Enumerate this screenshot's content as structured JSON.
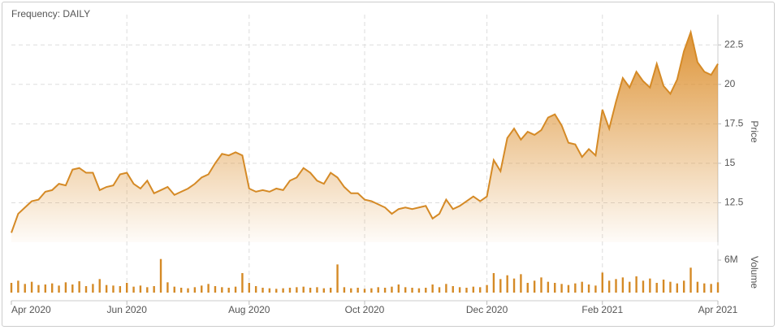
{
  "chart_data": {
    "type": "area",
    "title": "Frequency: DAILY",
    "ylabel": "Price",
    "y2label": "Volume",
    "categories": [
      "Apr 2020",
      null,
      null,
      null,
      null,
      null,
      null,
      null,
      null,
      null,
      null,
      null,
      null,
      null,
      null,
      null,
      null,
      "Jun 2020",
      null,
      null,
      null,
      null,
      null,
      null,
      null,
      null,
      null,
      null,
      null,
      null,
      null,
      null,
      null,
      null,
      null,
      "Aug 2020",
      null,
      null,
      null,
      null,
      null,
      null,
      null,
      null,
      null,
      null,
      null,
      null,
      null,
      null,
      null,
      null,
      "Oct 2020",
      null,
      null,
      null,
      null,
      null,
      null,
      null,
      null,
      null,
      null,
      null,
      null,
      null,
      null,
      null,
      null,
      null,
      "Dec 2020",
      null,
      null,
      null,
      null,
      null,
      null,
      null,
      null,
      null,
      null,
      null,
      null,
      null,
      null,
      null,
      null,
      "Feb 2021",
      null,
      null,
      null,
      null,
      null,
      null,
      null,
      null,
      null,
      null,
      null,
      null,
      null,
      null,
      null,
      null,
      "Apr 2021"
    ],
    "series": [
      {
        "type": "area",
        "color": "#d58a26",
        "values": [
          10.6,
          11.8,
          12.2,
          12.6,
          12.7,
          13.2,
          13.3,
          13.7,
          13.6,
          14.6,
          14.7,
          14.4,
          14.4,
          13.3,
          13.5,
          13.6,
          14.3,
          14.4,
          13.7,
          13.4,
          13.9,
          13.1,
          13.3,
          13.5,
          13.0,
          13.2,
          13.4,
          13.7,
          14.1,
          14.3,
          15.0,
          15.6,
          15.5,
          15.7,
          15.5,
          13.4,
          13.2,
          13.3,
          13.2,
          13.4,
          13.3,
          13.9,
          14.1,
          14.7,
          14.4,
          13.9,
          13.7,
          14.4,
          14.1,
          13.5,
          13.1,
          13.1,
          12.7,
          12.6,
          12.4,
          12.2,
          11.8,
          12.1,
          12.2,
          12.1,
          12.2,
          12.3,
          11.5,
          11.8,
          12.7,
          12.1,
          12.3,
          12.6,
          12.9,
          12.6,
          12.9,
          15.2,
          14.5,
          16.6,
          17.2,
          16.5,
          17.0,
          16.8,
          17.1,
          17.9,
          18.1,
          17.4,
          16.3,
          16.2,
          15.4,
          15.9,
          15.5,
          18.4,
          17.2,
          18.9,
          20.4,
          19.8,
          20.8,
          20.2,
          19.8,
          21.3,
          19.9,
          19.4,
          20.3,
          22.1,
          23.3,
          21.4,
          20.8,
          20.6,
          21.3
        ]
      },
      {
        "type": "bar",
        "axis": "y2",
        "color": "#d58a26",
        "values": [
          1800000,
          2200000,
          1600000,
          2000000,
          1400000,
          1500000,
          1700000,
          1300000,
          1900000,
          1500000,
          2100000,
          1200000,
          1600000,
          2500000,
          1400000,
          1300000,
          1200000,
          1800000,
          1100000,
          1300000,
          1000000,
          1200000,
          6200000,
          1900000,
          1100000,
          900000,
          800000,
          1000000,
          1300000,
          1600000,
          1200000,
          1000000,
          900000,
          1100000,
          3600000,
          1800000,
          1200000,
          900000,
          800000,
          700000,
          800000,
          900000,
          1000000,
          1100000,
          900000,
          1000000,
          800000,
          900000,
          5200000,
          1000000,
          800000,
          900000,
          700000,
          800000,
          1000000,
          900000,
          1100000,
          1500000,
          1000000,
          900000,
          800000,
          900000,
          1500000,
          1000000,
          1600000,
          1200000,
          1000000,
          900000,
          1100000,
          1000000,
          1400000,
          3600000,
          2500000,
          3200000,
          2600000,
          3400000,
          1800000,
          2200000,
          2800000,
          2000000,
          1800000,
          1600000,
          1400000,
          1700000,
          2000000,
          1500000,
          1300000,
          3700000,
          2200000,
          2500000,
          2800000,
          2000000,
          3000000,
          2200000,
          2600000,
          1800000,
          2400000,
          2000000,
          1700000,
          2200000,
          4600000,
          2000000,
          1700000,
          1600000,
          1900000
        ]
      }
    ],
    "ylim": [
      10,
      23.8
    ],
    "yticks": [
      12.5,
      15,
      17.5,
      20,
      22.5
    ],
    "y2lim": [
      0,
      7800000
    ],
    "y2ticks": [
      {
        "value": 6000000,
        "label": "6M"
      }
    ],
    "grid": true
  }
}
